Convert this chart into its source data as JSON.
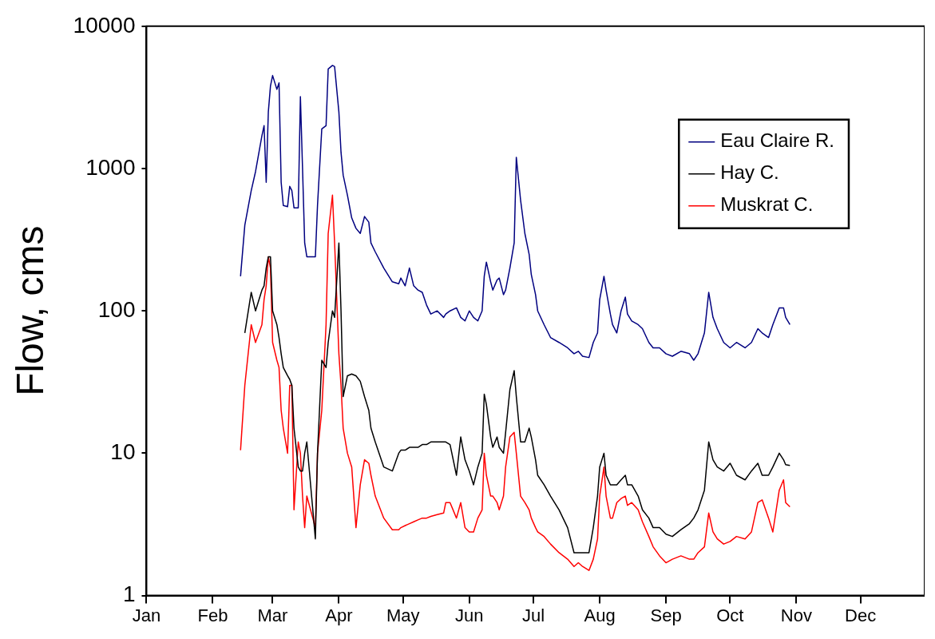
{
  "chart_data": {
    "type": "line",
    "ylabel": "Flow, cms",
    "log": true,
    "grid": false,
    "legend": "top right",
    "marker": "none",
    "line_style": "solid",
    "xlim": [
      "--01-01",
      "--12-31"
    ],
    "xticks": [
      {
        "value": "--01-01",
        "label": "Jan"
      },
      {
        "value": "--02-01",
        "label": "Feb"
      },
      {
        "value": "--03-01",
        "label": "Mar"
      },
      {
        "value": "--04-01",
        "label": "Apr"
      },
      {
        "value": "--05-01",
        "label": "May"
      },
      {
        "value": "--06-01",
        "label": "Jun"
      },
      {
        "value": "--07-01",
        "label": "Jul"
      },
      {
        "value": "--08-01",
        "label": "Aug"
      },
      {
        "value": "--09-01",
        "label": "Sep"
      },
      {
        "value": "--10-01",
        "label": "Oct"
      },
      {
        "value": "--11-01",
        "label": "Nov"
      },
      {
        "value": "--12-01",
        "label": "Dec"
      }
    ],
    "ylim": [
      1,
      10000
    ],
    "yticks": [
      1,
      10,
      100,
      1000,
      10000
    ],
    "x": [
      "--02-14",
      "--02-16",
      "--02-19",
      "--02-21",
      "--02-24",
      "--02-25",
      "--02-26",
      "--02-27",
      "--02-28",
      "--03-01",
      "--03-03",
      "--03-04",
      "--03-05",
      "--03-06",
      "--03-08",
      "--03-09",
      "--03-10",
      "--03-11",
      "--03-13",
      "--03-14",
      "--03-15",
      "--03-16",
      "--03-17",
      "--03-21",
      "--03-22",
      "--03-24",
      "--03-26",
      "--03-27",
      "--03-29",
      "--03-30",
      "--04-01",
      "--04-02",
      "--04-03",
      "--04-05",
      "--04-07",
      "--04-09",
      "--04-11",
      "--04-13",
      "--04-15",
      "--04-16",
      "--04-18",
      "--04-22",
      "--04-26",
      "--04-29",
      "--04-30",
      "--05-02",
      "--05-04",
      "--05-06",
      "--05-08",
      "--05-10",
      "--05-12",
      "--05-14",
      "--05-17",
      "--05-20",
      "--05-21",
      "--05-23",
      "--05-26",
      "--05-28",
      "--05-30",
      "--06-01",
      "--06-03",
      "--06-05",
      "--06-07",
      "--06-08",
      "--06-09",
      "--06-11",
      "--06-12",
      "--06-14",
      "--06-15",
      "--06-17",
      "--06-18",
      "--06-20",
      "--06-22",
      "--06-23",
      "--06-25",
      "--06-27",
      "--06-29",
      "--06-30",
      "--07-02",
      "--07-03",
      "--07-06",
      "--07-09",
      "--07-13",
      "--07-17",
      "--07-20",
      "--07-22",
      "--07-24",
      "--07-27",
      "--07-29",
      "--07-31",
      "--08-01",
      "--08-03",
      "--08-04",
      "--08-06",
      "--08-07",
      "--08-09",
      "--08-11",
      "--08-13",
      "--08-14",
      "--08-16",
      "--08-19",
      "--08-21",
      "--08-24",
      "--08-26",
      "--08-29",
      "--09-01",
      "--09-04",
      "--09-08",
      "--09-12",
      "--09-14",
      "--09-16",
      "--09-19",
      "--09-21",
      "--09-23",
      "--09-25",
      "--09-28",
      "--10-01",
      "--10-04",
      "--10-08",
      "--10-11",
      "--10-14",
      "--10-16",
      "--10-19",
      "--10-21",
      "--10-24",
      "--10-26",
      "--10-27",
      "--10-29"
    ],
    "series": [
      {
        "name": "Eau Claire R.",
        "color": "#000080",
        "values": [
          175,
          400,
          700,
          950,
          1700,
          2000,
          800,
          2500,
          3800,
          4500,
          3600,
          4000,
          800,
          550,
          540,
          750,
          700,
          530,
          530,
          3200,
          1000,
          300,
          240,
          240,
          550,
          1900,
          2000,
          5000,
          5300,
          5200,
          2500,
          1300,
          900,
          650,
          450,
          380,
          350,
          460,
          420,
          300,
          260,
          200,
          160,
          155,
          170,
          150,
          200,
          150,
          140,
          135,
          110,
          95,
          100,
          90,
          95,
          100,
          105,
          90,
          85,
          100,
          90,
          85,
          100,
          175,
          220,
          160,
          140,
          165,
          170,
          130,
          140,
          200,
          300,
          1200,
          600,
          350,
          250,
          180,
          130,
          100,
          80,
          65,
          60,
          55,
          50,
          52,
          48,
          47,
          60,
          70,
          120,
          175,
          140,
          95,
          80,
          70,
          100,
          125,
          95,
          85,
          80,
          75,
          60,
          55,
          55,
          50,
          48,
          52,
          50,
          45,
          50,
          70,
          135,
          90,
          75,
          60,
          55,
          60,
          55,
          60,
          75,
          70,
          65,
          80,
          105,
          105,
          90,
          80
        ]
      },
      {
        "name": "Hay C.",
        "color": "#000000",
        "values": [
          null,
          70,
          135,
          100,
          140,
          150,
          200,
          240,
          240,
          100,
          80,
          65,
          50,
          40,
          35,
          33,
          30,
          15,
          8,
          7.5,
          7.5,
          10,
          12,
          2.5,
          10,
          45,
          40,
          60,
          100,
          90,
          300,
          100,
          25,
          35,
          36,
          35,
          32,
          25,
          20,
          15,
          12,
          8,
          7.5,
          10,
          10.5,
          10.5,
          11,
          11,
          11,
          11.5,
          11.5,
          12,
          12,
          12,
          12,
          11.5,
          7,
          13,
          9,
          7.5,
          6,
          8,
          10,
          26,
          22,
          13,
          11,
          13,
          11,
          10,
          14,
          28,
          38,
          25,
          12,
          12,
          15,
          13,
          9,
          7,
          6,
          5,
          4,
          3,
          2,
          2,
          2,
          2,
          3,
          5,
          8,
          10,
          7,
          6,
          6,
          6,
          6.5,
          7,
          6,
          6,
          5,
          4,
          3.5,
          3,
          3,
          2.7,
          2.6,
          2.9,
          3.2,
          3.5,
          4,
          5.5,
          12,
          9,
          8,
          7.5,
          8.5,
          7,
          6.5,
          7.5,
          8.5,
          7,
          7,
          8,
          10,
          9,
          8.3,
          8.2
        ]
      },
      {
        "name": "Muskrat C.",
        "color": "#ff0000",
        "values": [
          10.5,
          30,
          80,
          60,
          80,
          120,
          150,
          240,
          200,
          60,
          45,
          40,
          20,
          15,
          10,
          30,
          30,
          4,
          12,
          10,
          5,
          3,
          5,
          3,
          10,
          20,
          80,
          350,
          650,
          300,
          50,
          30,
          15,
          10,
          8,
          3,
          6,
          9,
          8.5,
          7,
          5,
          3.5,
          2.9,
          2.9,
          3,
          3.1,
          3.2,
          3.3,
          3.4,
          3.5,
          3.5,
          3.6,
          3.7,
          3.8,
          4.5,
          4.5,
          3.5,
          4.5,
          3,
          2.8,
          2.8,
          3.5,
          4,
          10,
          7,
          5,
          5,
          4.5,
          4,
          5,
          8,
          13,
          14,
          10,
          5,
          4.5,
          4,
          3.5,
          3,
          2.8,
          2.6,
          2.3,
          2,
          1.8,
          1.6,
          1.7,
          1.6,
          1.5,
          1.8,
          2.5,
          5,
          8,
          5,
          3.5,
          3.5,
          4.5,
          4.8,
          5,
          4.3,
          4.5,
          4,
          3.3,
          2.6,
          2.2,
          1.9,
          1.7,
          1.8,
          1.9,
          1.8,
          1.8,
          2,
          2.2,
          3.8,
          2.8,
          2.5,
          2.3,
          2.4,
          2.6,
          2.5,
          2.8,
          4.5,
          4.7,
          3.5,
          2.8,
          5.5,
          6.5,
          4.5,
          4.2
        ]
      }
    ]
  }
}
